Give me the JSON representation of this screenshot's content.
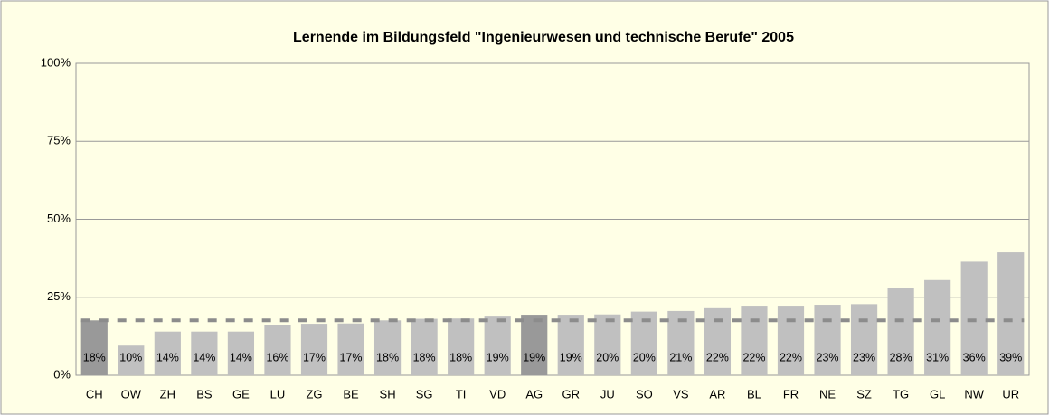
{
  "chart_data": {
    "type": "bar",
    "title": "Lernende im Bildungsfeld \"Ingenieurwesen und technische Berufe\" 2005",
    "categories": [
      "CH",
      "OW",
      "ZH",
      "BS",
      "GE",
      "LU",
      "ZG",
      "BE",
      "SH",
      "SG",
      "TI",
      "VD",
      "AG",
      "GR",
      "JU",
      "SO",
      "VS",
      "AR",
      "BL",
      "FR",
      "NE",
      "SZ",
      "TG",
      "GL",
      "NW",
      "UR"
    ],
    "values": [
      17.6,
      9.5,
      14,
      14,
      14,
      16.2,
      16.5,
      16.6,
      17.6,
      18.1,
      18.2,
      18.8,
      19.4,
      19.4,
      19.5,
      20.4,
      20.6,
      21.5,
      22.3,
      22.3,
      22.6,
      22.8,
      28.1,
      30.5,
      36.4,
      39.4
    ],
    "value_labels": [
      "18%",
      "10%",
      "14%",
      "14%",
      "14%",
      "16%",
      "17%",
      "17%",
      "18%",
      "18%",
      "18%",
      "19%",
      "19%",
      "19%",
      "20%",
      "20%",
      "21%",
      "22%",
      "22%",
      "22%",
      "23%",
      "23%",
      "28%",
      "31%",
      "36%",
      "39%"
    ],
    "colors": [
      "#999999",
      "#c0c0c0",
      "#c0c0c0",
      "#c0c0c0",
      "#c0c0c0",
      "#c0c0c0",
      "#c0c0c0",
      "#c0c0c0",
      "#c0c0c0",
      "#c0c0c0",
      "#c0c0c0",
      "#c0c0c0",
      "#999999",
      "#c0c0c0",
      "#c0c0c0",
      "#c0c0c0",
      "#c0c0c0",
      "#c0c0c0",
      "#c0c0c0",
      "#c0c0c0",
      "#c0c0c0",
      "#c0c0c0",
      "#c0c0c0",
      "#c0c0c0",
      "#c0c0c0",
      "#c0c0c0"
    ],
    "reference_line": 17.6,
    "ylim": [
      0,
      100
    ],
    "yticks": [
      {
        "value": 0,
        "label": "0%"
      },
      {
        "value": 25,
        "label": "25%"
      },
      {
        "value": 50,
        "label": "50%"
      },
      {
        "value": 75,
        "label": "75%"
      },
      {
        "value": 100,
        "label": "100%"
      }
    ],
    "grid": true
  }
}
